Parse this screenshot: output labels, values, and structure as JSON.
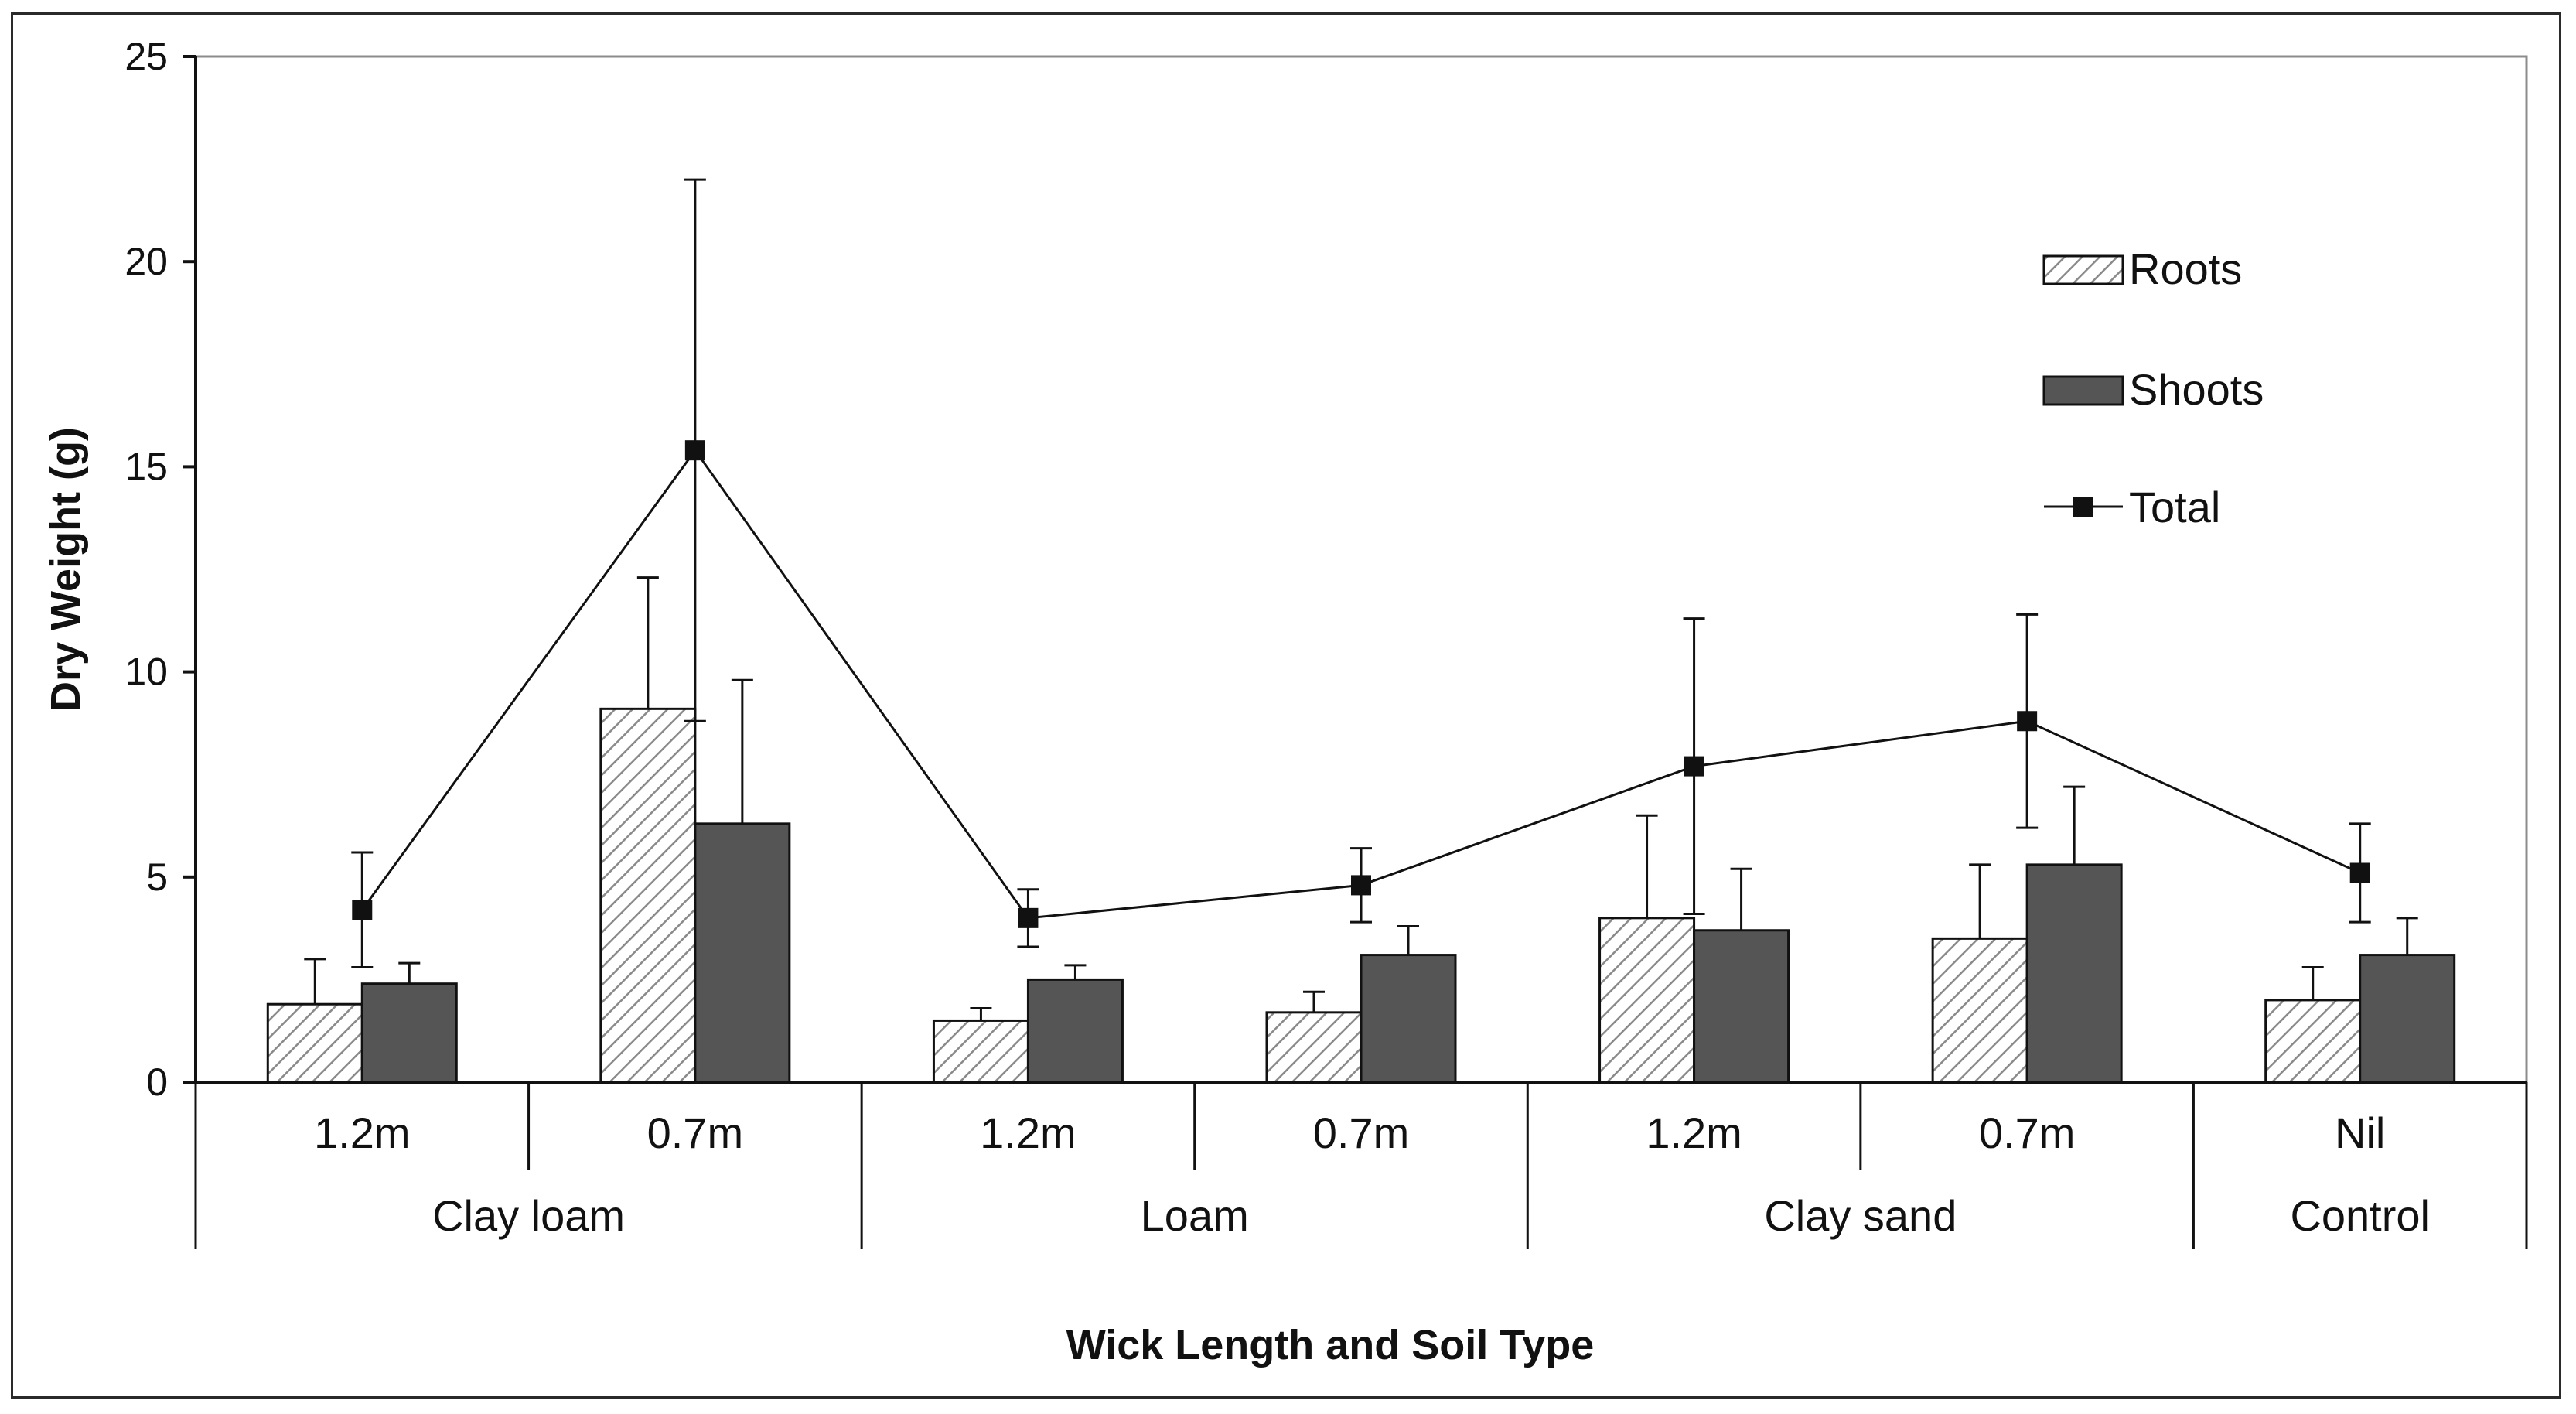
{
  "chart_data": {
    "type": "bar",
    "title": "",
    "xlabel": "Wick Length and Soil Type",
    "ylabel": "Dry Weight (g)",
    "ylim": [
      0,
      25
    ],
    "yticks": [
      "0",
      "5",
      "10",
      "15",
      "20",
      "25"
    ],
    "categories": [
      "1.2m",
      "0.7m",
      "1.2m",
      "0.7m",
      "1.2m",
      "0.7m",
      "Nil"
    ],
    "groups": [
      {
        "label": "Clay loam",
        "span": 2
      },
      {
        "label": "Loam",
        "span": 2
      },
      {
        "label": "Clay sand",
        "span": 2
      },
      {
        "label": "Control",
        "span": 1
      }
    ],
    "series": [
      {
        "name": "Roots",
        "kind": "bar",
        "fill": "hatched",
        "values": [
          1.9,
          9.1,
          1.5,
          1.7,
          4.0,
          3.5,
          2.0
        ],
        "errors": [
          1.1,
          3.2,
          0.3,
          0.5,
          2.5,
          1.8,
          0.8
        ]
      },
      {
        "name": "Shoots",
        "kind": "bar",
        "fill": "solid",
        "values": [
          2.4,
          6.3,
          2.5,
          3.1,
          3.7,
          5.3,
          3.1
        ],
        "errors": [
          0.5,
          3.5,
          0.35,
          0.7,
          1.5,
          1.9,
          0.9
        ]
      },
      {
        "name": "Total",
        "kind": "line",
        "marker": "square",
        "values": [
          4.2,
          15.4,
          4.0,
          4.8,
          7.7,
          8.8,
          5.1
        ],
        "errors": [
          1.4,
          6.6,
          0.7,
          0.9,
          3.6,
          2.6,
          1.2
        ]
      }
    ],
    "legend": {
      "position": "top-right",
      "entries": [
        "Roots",
        "Shoots",
        "Total"
      ]
    }
  },
  "colors": {
    "shoots": "#555555",
    "roots_hatch": "#8a8a8a",
    "line": "#111111",
    "axis": "#111111",
    "frame": "#8c8c8c"
  }
}
